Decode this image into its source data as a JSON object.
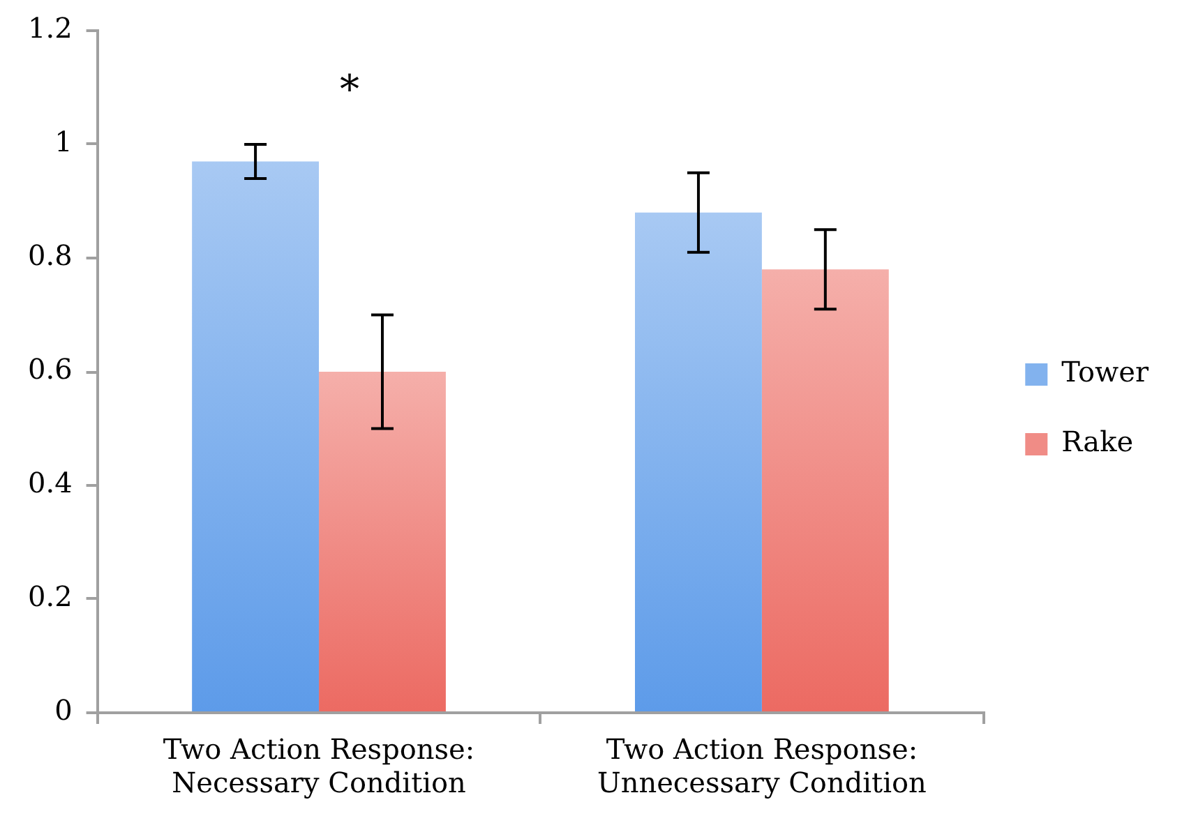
{
  "chart_data": {
    "type": "bar",
    "categories": [
      "Two Action Response: Necessary Condition",
      "Two Action Response: Unnecessary Condition"
    ],
    "series": [
      {
        "name": "Tower",
        "color": "#82b2ee",
        "values": [
          0.97,
          0.88
        ],
        "errors": [
          0.03,
          0.07
        ]
      },
      {
        "name": "Rake",
        "color": "#f08c86",
        "values": [
          0.6,
          0.78
        ],
        "errors": [
          0.1,
          0.07
        ]
      }
    ],
    "ylim": [
      0,
      1.2
    ],
    "yticks": [
      0,
      0.2,
      0.4,
      0.6,
      0.8,
      1,
      1.2
    ],
    "legend": "right",
    "grid": false,
    "annotations": [
      "*"
    ]
  }
}
